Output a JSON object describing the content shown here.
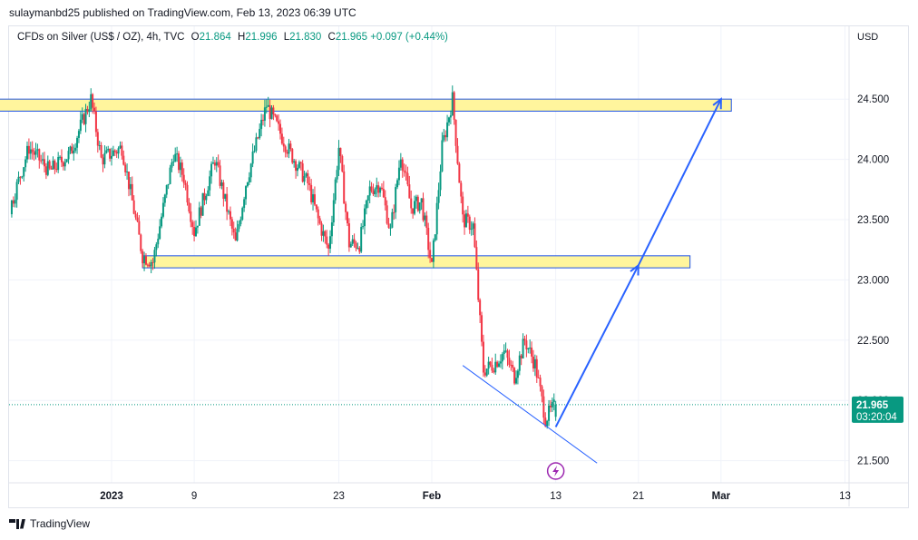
{
  "header": {
    "publisher": "sulaymanbd25 published on TradingView.com, Feb 13, 2023 06:39 UTC"
  },
  "legend": {
    "symbol": "CFDs on Silver (US$ / OZ), 4h, TVC",
    "open_label": "O",
    "open": "21.864",
    "high_label": "H",
    "high": "21.996",
    "low_label": "L",
    "low": "21.830",
    "close_label": "C",
    "close": "21.965",
    "change": "+0.097 (+0.44%)"
  },
  "footer": {
    "brand": "TradingView"
  },
  "colors": {
    "up": "#089981",
    "down": "#f23645",
    "zone_fill": "#fff59d",
    "zone_border": "#1e53e5",
    "arrow": "#2962ff",
    "badge": "#089981",
    "event": "#9c27b0",
    "grid": "#f0f3fa"
  },
  "chart_data": {
    "type": "candlestick",
    "symbol": "CFDs on Silver (US$ / OZ)",
    "interval": "4h",
    "currency_label": "USD",
    "y_ticks": [
      "21.500",
      "22.000",
      "22.500",
      "23.000",
      "23.500",
      "24.000",
      "24.500"
    ],
    "ylim": [
      21.3,
      25.1
    ],
    "x_ticks": [
      "2023",
      "9",
      "23",
      "Feb",
      "13",
      "21",
      "Mar",
      "13"
    ],
    "x_tick_dates": [
      "2023-01-01",
      "2023-01-09",
      "2023-01-23",
      "2023-02-01",
      "2023-02-13",
      "2023-02-21",
      "2023-03-01",
      "2023-03-13"
    ],
    "price_path": [
      [
        "2022-12-15",
        24.05
      ],
      [
        "2022-12-16",
        23.4
      ],
      [
        "2022-12-17",
        23.75
      ],
      [
        "2022-12-19",
        23.6
      ],
      [
        "2022-12-20",
        24.25
      ],
      [
        "2022-12-22",
        23.55
      ],
      [
        "2022-12-24",
        24.1
      ],
      [
        "2022-12-26",
        23.9
      ],
      [
        "2022-12-28",
        24.05
      ],
      [
        "2022-12-30",
        24.5
      ],
      [
        "2022-12-31",
        24.0
      ],
      [
        "2023-01-02",
        24.1
      ],
      [
        "2023-01-04",
        23.2
      ],
      [
        "2023-01-05",
        23.15
      ],
      [
        "2023-01-07",
        24.05
      ],
      [
        "2023-01-08",
        23.85
      ],
      [
        "2023-01-09",
        23.4
      ],
      [
        "2023-01-11",
        24.0
      ],
      [
        "2023-01-13",
        23.3
      ],
      [
        "2023-01-14",
        23.8
      ],
      [
        "2023-01-16",
        24.45
      ],
      [
        "2023-01-18",
        24.1
      ],
      [
        "2023-01-20",
        23.8
      ],
      [
        "2023-01-21",
        23.5
      ],
      [
        "2023-01-22",
        23.25
      ],
      [
        "2023-01-23",
        24.1
      ],
      [
        "2023-01-24",
        23.3
      ],
      [
        "2023-01-25",
        23.3
      ],
      [
        "2023-01-26",
        23.75
      ],
      [
        "2023-01-27",
        23.8
      ],
      [
        "2023-01-28",
        23.4
      ],
      [
        "2023-01-29",
        24.05
      ],
      [
        "2023-01-30",
        23.6
      ],
      [
        "2023-01-31",
        23.65
      ],
      [
        "2023-02-01",
        23.1
      ],
      [
        "2023-02-02",
        24.1
      ],
      [
        "2023-02-03",
        24.5
      ],
      [
        "2023-02-04",
        23.5
      ],
      [
        "2023-02-05",
        23.45
      ],
      [
        "2023-02-06",
        22.25
      ],
      [
        "2023-02-07",
        22.3
      ],
      [
        "2023-02-08",
        22.4
      ],
      [
        "2023-02-09",
        22.2
      ],
      [
        "2023-02-10",
        22.5
      ],
      [
        "2023-02-11",
        22.3
      ],
      [
        "2023-02-12",
        21.85
      ],
      [
        "2023-02-13",
        21.965
      ]
    ],
    "last_price": "21.965",
    "countdown": "03:20:04",
    "zones": [
      {
        "from": "2022-12-21",
        "to": "2023-03-02",
        "low": 24.4,
        "high": 24.5
      },
      {
        "from": "2023-01-04",
        "to": "2023-02-26",
        "low": 23.1,
        "high": 23.2
      }
    ],
    "trendline": {
      "from": [
        "2023-02-04",
        22.29
      ],
      "to": [
        "2023-02-17",
        21.48
      ]
    },
    "projection": [
      [
        "2023-02-13",
        21.78
      ],
      [
        "2023-02-21",
        23.12
      ],
      [
        "2023-03-01",
        24.5
      ]
    ]
  }
}
